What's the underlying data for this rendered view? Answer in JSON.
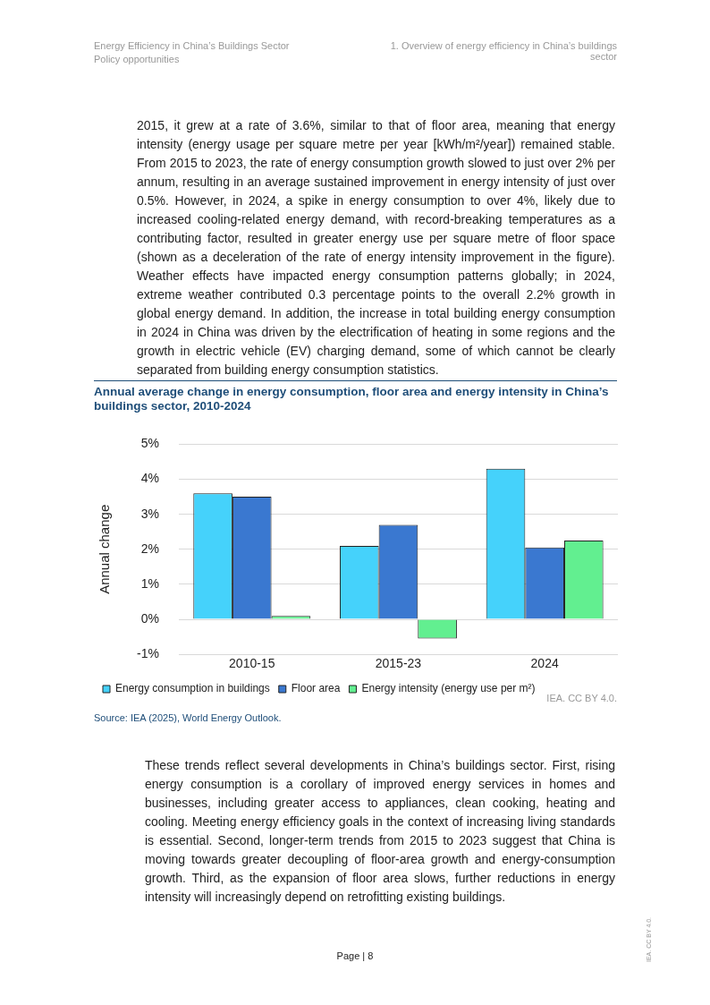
{
  "chart_data": {
    "type": "bar",
    "title": "Annual average change in energy consumption, floor area and energy intensity in China’s buildings sector, 2010-2024",
    "ylabel": "Annual change",
    "categories": [
      "2010-15",
      "2015-23",
      "2024"
    ],
    "series": [
      {
        "name": "Energy consumption in buildings",
        "color": "#45d2fb",
        "values": [
          3.6,
          2.1,
          4.3
        ]
      },
      {
        "name": "Floor area",
        "color": "#3a78d0",
        "values": [
          3.5,
          2.7,
          2.05
        ]
      },
      {
        "name": "Energy intensity (energy use per m²)",
        "color": "#62ef90",
        "values": [
          0.1,
          -0.55,
          2.25
        ]
      }
    ],
    "ylim": [
      -1,
      5
    ],
    "yticks": [
      {
        "value": -1,
        "label": "-1%"
      },
      {
        "value": 0,
        "label": "0%"
      },
      {
        "value": 1,
        "label": "1%"
      },
      {
        "value": 2,
        "label": "2%"
      },
      {
        "value": 3,
        "label": "3%"
      },
      {
        "value": 4,
        "label": "4%"
      },
      {
        "value": 5,
        "label": "5%"
      }
    ],
    "grid": "y",
    "legend": "bottom",
    "annotations": [
      "Energy Efficiency in China’s Buildings Sector",
      "Policy opportunities",
      "1. Overview of energy efficiency in China’s buildings sector",
      "2015, it grew at a rate of 3.6%, similar to that of floor area, meaning that energy intensity (energy usage per square metre per year [kWh/m²/year]) remained stable. From 2015 to 2023, the rate of energy consumption growth slowed to just over 2% per annum, resulting in an average sustained improvement in energy intensity of just over 0.5%. However, in 2024, a spike in energy consumption to over 4%, likely due to increased cooling-related energy demand, with record-breaking temperatures as a contributing factor, resulted in greater energy use per square metre of floor space (shown as a deceleration of the rate of energy intensity improvement in the figure). Weather effects have impacted energy consumption patterns globally; in 2024, extreme weather contributed 0.3 percentage points to the overall 2.2% growth in global energy demand. In addition, the increase in total building energy consumption in 2024 in China was driven by the electrification of heating in some regions and the growth in electric vehicle (EV) charging demand, some of which cannot be clearly separated from building energy consumption statistics.",
      "IEA. CC BY 4.0.",
      "Source: IEA (2025), World Energy Outlook.",
      "These trends reflect several developments in China’s buildings sector. First, rising energy consumption is a corollary of improved energy services in homes and businesses, including greater access to appliances, clean cooking, heating and cooling. Meeting energy efficiency goals in the context of increasing living standards is essential. Second, longer-term trends from 2015 to 2023 suggest that China is moving towards greater decoupling of floor-area growth and energy-consumption growth. Third, as the expansion of floor area slows, further reductions in energy intensity will increasingly depend on retrofitting existing buildings.",
      "Page | 8",
      "IEA. CC BY 4.0."
    ]
  }
}
